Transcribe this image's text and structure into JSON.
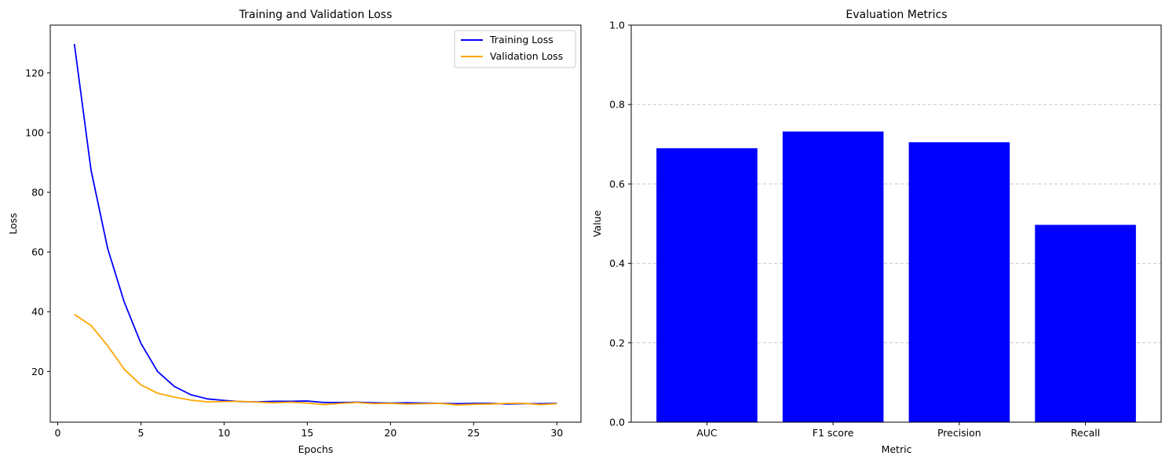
{
  "chart_data": [
    {
      "type": "line",
      "title": "Training and Validation Loss",
      "xlabel": "Epochs",
      "ylabel": "Loss",
      "xlim": [
        -0.45,
        31.45
      ],
      "ylim": [
        3,
        136
      ],
      "xticks": [
        0,
        5,
        10,
        15,
        20,
        25,
        30
      ],
      "yticks": [
        20,
        40,
        60,
        80,
        100,
        120
      ],
      "legend_position": "top-right",
      "x": [
        1,
        2,
        3,
        4,
        5,
        6,
        7,
        8,
        9,
        10,
        11,
        12,
        13,
        14,
        15,
        16,
        17,
        18,
        19,
        20,
        21,
        22,
        23,
        24,
        25,
        26,
        27,
        28,
        29,
        30
      ],
      "series": [
        {
          "name": "Training Loss",
          "color": "#0000ff",
          "values": [
            129.7,
            87.5,
            61.2,
            43.2,
            29.4,
            20.0,
            15.0,
            12.2,
            10.8,
            10.3,
            9.9,
            9.8,
            10.0,
            10.0,
            10.1,
            9.6,
            9.6,
            9.7,
            9.5,
            9.4,
            9.5,
            9.4,
            9.3,
            9.2,
            9.3,
            9.3,
            9.1,
            9.2,
            9.2,
            9.3
          ]
        },
        {
          "name": "Validation Loss",
          "color": "#ffa500",
          "values": [
            39.1,
            35.4,
            28.6,
            20.7,
            15.5,
            12.7,
            11.4,
            10.4,
            9.8,
            9.9,
            10.0,
            9.7,
            9.5,
            9.7,
            9.4,
            8.9,
            9.3,
            9.6,
            9.2,
            9.3,
            9.1,
            9.2,
            9.3,
            8.8,
            9.0,
            9.1,
            9.3,
            9.3,
            8.9,
            9.2
          ]
        }
      ]
    },
    {
      "type": "bar",
      "title": "Evaluation Metrics",
      "xlabel": "Metric",
      "ylabel": "Value",
      "ylim": [
        0,
        1.0
      ],
      "yticks": [
        "0.0",
        "0.2",
        "0.4",
        "0.6",
        "0.8",
        "1.0"
      ],
      "grid": "y-dashed",
      "color": "#0000ff",
      "categories": [
        "AUC",
        "F1 score",
        "Precision",
        "Recall"
      ],
      "values": [
        0.69,
        0.732,
        0.705,
        0.497
      ]
    }
  ]
}
